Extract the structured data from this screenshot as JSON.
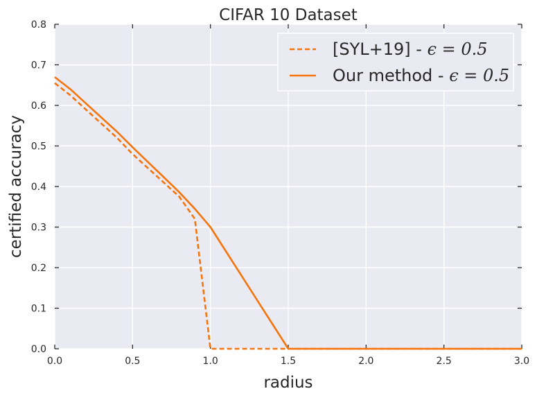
{
  "chart_data": {
    "type": "line",
    "title": "CIFAR 10 Dataset",
    "xlabel": "radius",
    "ylabel": "certified accuracy",
    "xlim": [
      0.0,
      3.0
    ],
    "ylim": [
      0.0,
      0.8
    ],
    "xticks": [
      "0.0",
      "0.5",
      "1.0",
      "1.5",
      "2.0",
      "2.5",
      "3.0"
    ],
    "yticks": [
      "0.0",
      "0.1",
      "0.2",
      "0.3",
      "0.4",
      "0.5",
      "0.6",
      "0.7",
      "0.8"
    ],
    "grid": true,
    "legend_position": "top-right",
    "colors": {
      "series": "#f5740c",
      "background": "#eaeaf2",
      "grid": "#ffffff"
    },
    "series": [
      {
        "name": "[SYL+19] - ",
        "name_math": "ϵ = 0.5",
        "style": "dashed",
        "x": [
          0.0,
          0.1,
          0.2,
          0.3,
          0.4,
          0.5,
          0.6,
          0.7,
          0.8,
          0.9,
          1.0,
          1.5,
          2.0,
          2.5,
          3.0
        ],
        "y": [
          0.655,
          0.625,
          0.59,
          0.555,
          0.52,
          0.48,
          0.445,
          0.41,
          0.375,
          0.32,
          0.0,
          0.0,
          0.0,
          0.0,
          0.0
        ]
      },
      {
        "name": "Our method - ",
        "name_math": "ϵ = 0.5",
        "style": "solid",
        "x": [
          0.0,
          0.1,
          0.2,
          0.3,
          0.4,
          0.5,
          0.6,
          0.7,
          0.8,
          0.9,
          1.0,
          1.5,
          2.0,
          2.5,
          3.0
        ],
        "y": [
          0.67,
          0.64,
          0.605,
          0.57,
          0.535,
          0.497,
          0.46,
          0.423,
          0.386,
          0.345,
          0.3,
          0.0,
          0.0,
          0.0,
          0.0
        ]
      }
    ]
  }
}
